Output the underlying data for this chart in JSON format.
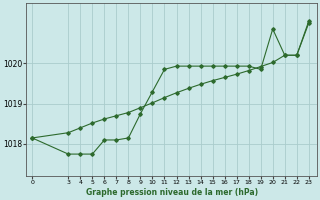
{
  "title": "Graphe pression niveau de la mer (hPa)",
  "bg_color": "#cce8e8",
  "grid_color": "#aacccc",
  "line_color": "#2d6a2d",
  "x_ticks": [
    0,
    3,
    4,
    5,
    6,
    7,
    8,
    9,
    10,
    11,
    12,
    13,
    14,
    15,
    16,
    17,
    18,
    19,
    20,
    21,
    22,
    23
  ],
  "y_ticks": [
    1018,
    1019,
    1020
  ],
  "ylim": [
    1017.2,
    1021.5
  ],
  "xlim": [
    -0.5,
    23.7
  ],
  "series1_x": [
    0,
    3,
    4,
    5,
    6,
    7,
    8,
    9,
    10,
    11,
    12,
    13,
    14,
    15,
    16,
    17,
    18,
    19,
    20,
    21,
    22,
    23
  ],
  "series1_y": [
    1018.15,
    1017.75,
    1017.75,
    1017.75,
    1018.1,
    1018.1,
    1018.15,
    1018.75,
    1019.3,
    1019.85,
    1019.93,
    1019.93,
    1019.93,
    1019.93,
    1019.93,
    1019.93,
    1019.93,
    1019.85,
    1020.85,
    1020.2,
    1020.2,
    1021.0
  ],
  "series2_x": [
    0,
    3,
    4,
    5,
    6,
    7,
    8,
    9,
    10,
    11,
    12,
    13,
    14,
    15,
    16,
    17,
    18,
    19,
    20,
    21,
    22,
    23
  ],
  "series2_y": [
    1018.15,
    1018.28,
    1018.4,
    1018.52,
    1018.62,
    1018.7,
    1018.78,
    1018.9,
    1019.02,
    1019.15,
    1019.27,
    1019.38,
    1019.48,
    1019.57,
    1019.65,
    1019.73,
    1019.82,
    1019.92,
    1020.02,
    1020.2,
    1020.2,
    1021.05
  ]
}
